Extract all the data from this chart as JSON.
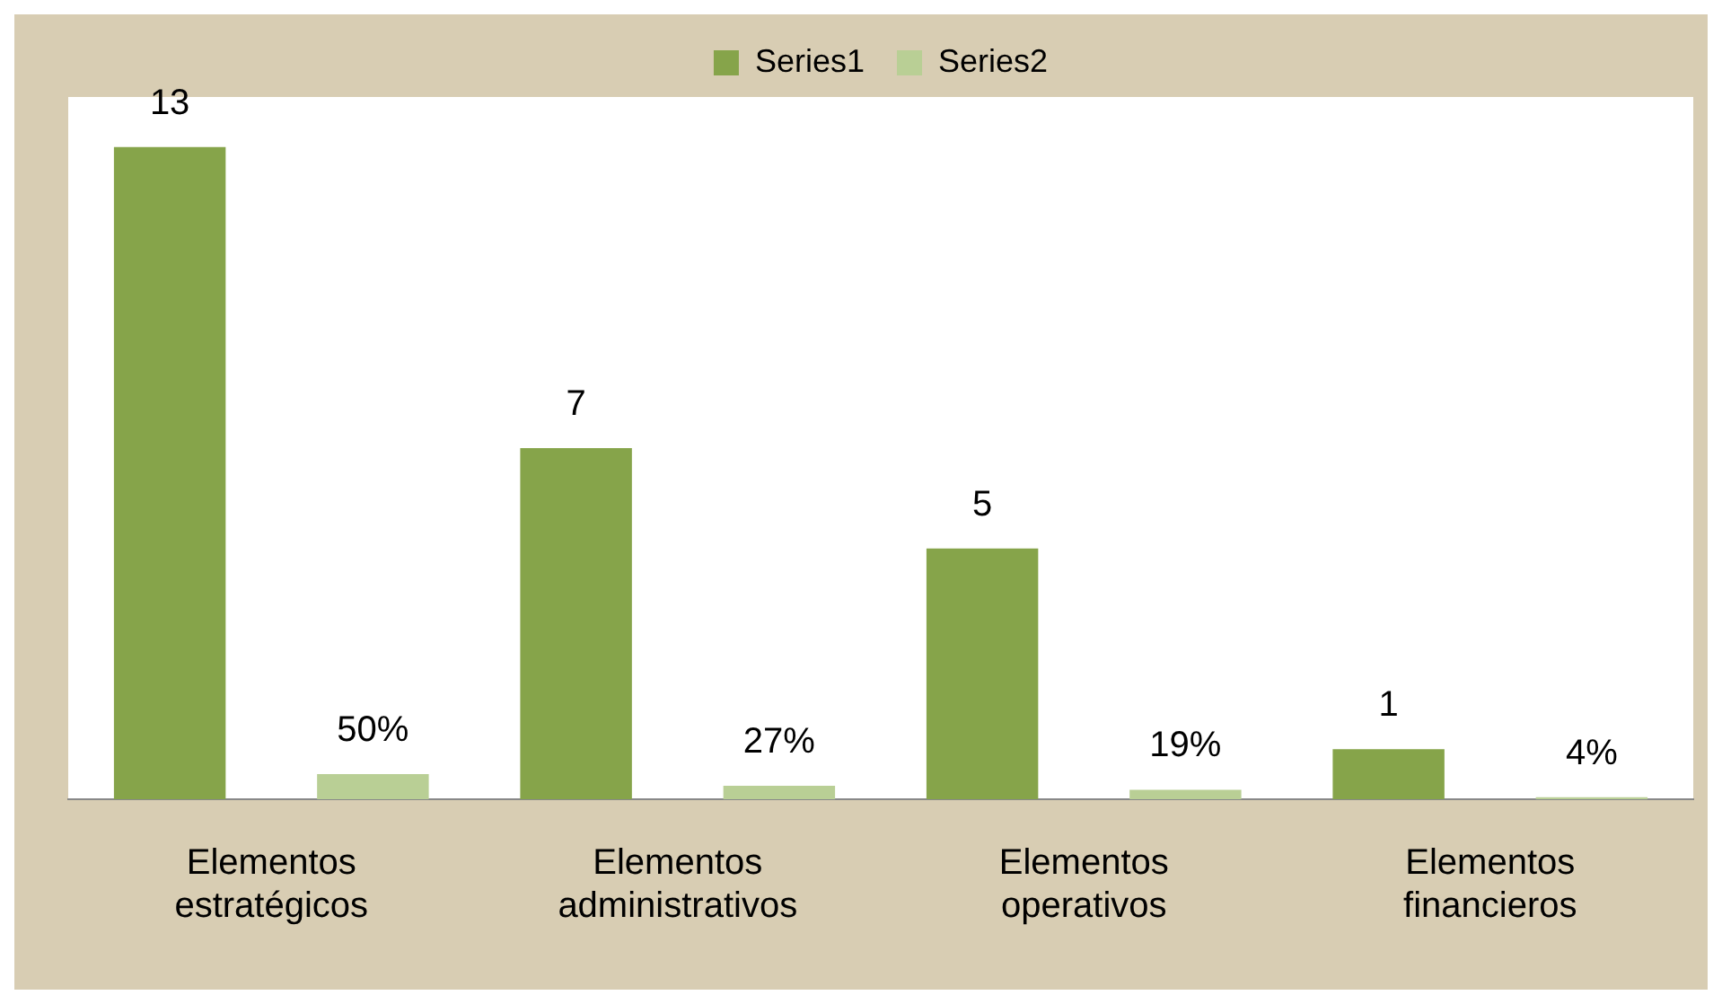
{
  "chart_data": {
    "type": "bar",
    "categories": [
      "Elementos estratégicos",
      "Elementos administrativos",
      "Elementos operativos",
      "Elementos financieros"
    ],
    "series": [
      {
        "name": "Series1",
        "color": "#86a44a",
        "values": [
          13,
          7,
          5,
          1
        ],
        "value_labels": [
          "13",
          "7",
          "5",
          "1"
        ]
      },
      {
        "name": "Series2",
        "color": "#b9cf95",
        "values": [
          0.5,
          0.27,
          0.19,
          0.04
        ],
        "value_labels": [
          "50%",
          "27%",
          "19%",
          "4%"
        ]
      }
    ],
    "legend": "top",
    "grid": false
  }
}
